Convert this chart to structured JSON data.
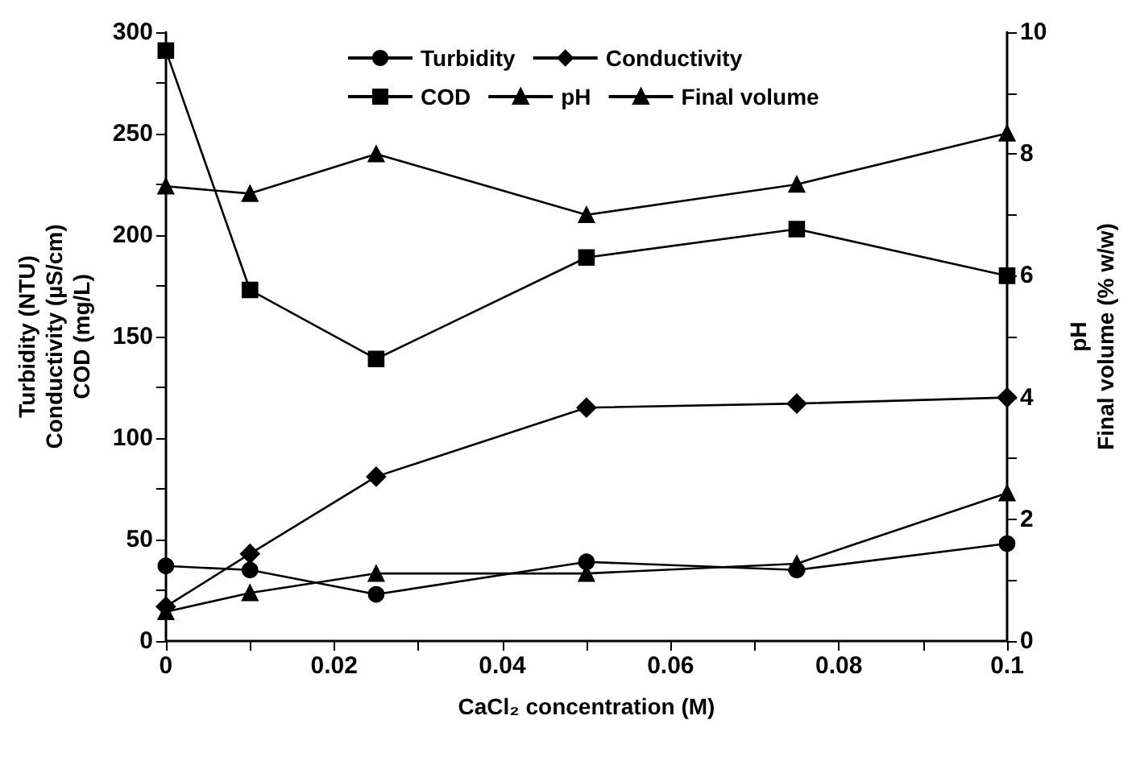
{
  "chart_data": {
    "type": "line",
    "xlabel": "CaCl₂ concentration (M)",
    "ylabel": "Turbidity (NTU)\nConductivity (µS/cm)\nCOD (mg/L)",
    "y2label": "pH\nFinal volume (% w/w)",
    "x": [
      0,
      0.01,
      0.025,
      0.05,
      0.075,
      0.1
    ],
    "series": [
      {
        "name": "Turbidity",
        "color": "#000000",
        "marker": "circle",
        "values": [
          37,
          35,
          23,
          39,
          35,
          48
        ]
      },
      {
        "name": "Conductivity",
        "color": "#000000",
        "marker": "diamond",
        "values": [
          17,
          43,
          81,
          115,
          117,
          120
        ]
      },
      {
        "name": "COD",
        "color": "#000000",
        "marker": "square",
        "values": [
          291,
          173,
          139,
          189,
          203,
          180
        ]
      },
      {
        "name": "pH",
        "color": "#000000",
        "marker": "triangle",
        "axis": "y2",
        "values": [
          7.47,
          7.35,
          8.0,
          7.0,
          7.5,
          8.34
        ]
      },
      {
        "name": "Final volume",
        "color": "#000000",
        "marker": "triangle",
        "axis": "y2",
        "values": [
          0.48,
          0.79,
          1.11,
          1.11,
          1.27,
          2.43
        ]
      }
    ],
    "xlim": [
      0,
      0.1
    ],
    "xticks": [
      0,
      {
        "value": 0.01,
        "label": null
      },
      0.02,
      {
        "value": 0.03,
        "label": null
      },
      0.04,
      {
        "value": 0.05,
        "label": null
      },
      0.06,
      {
        "value": 0.07,
        "label": null
      },
      0.08,
      {
        "value": 0.09,
        "label": null
      },
      0.1
    ],
    "ylim": [
      0,
      300
    ],
    "yticks": [
      0,
      {
        "value": 25,
        "label": null
      },
      50,
      {
        "value": 75,
        "label": null
      },
      100,
      {
        "value": 125,
        "label": null
      },
      150,
      {
        "value": 175,
        "label": null
      },
      200,
      {
        "value": 225,
        "label": null
      },
      250,
      {
        "value": 275,
        "label": null
      },
      300
    ],
    "y2lim": [
      0,
      10
    ],
    "y2ticks": [
      0,
      {
        "value": 1,
        "label": null
      },
      2,
      {
        "value": 3,
        "label": null
      },
      4,
      {
        "value": 5,
        "label": null
      },
      6,
      {
        "value": 7,
        "label": null
      },
      8,
      {
        "value": 9,
        "label": null
      },
      10
    ],
    "grid": false,
    "legend": "top",
    "line_style": "solid"
  }
}
